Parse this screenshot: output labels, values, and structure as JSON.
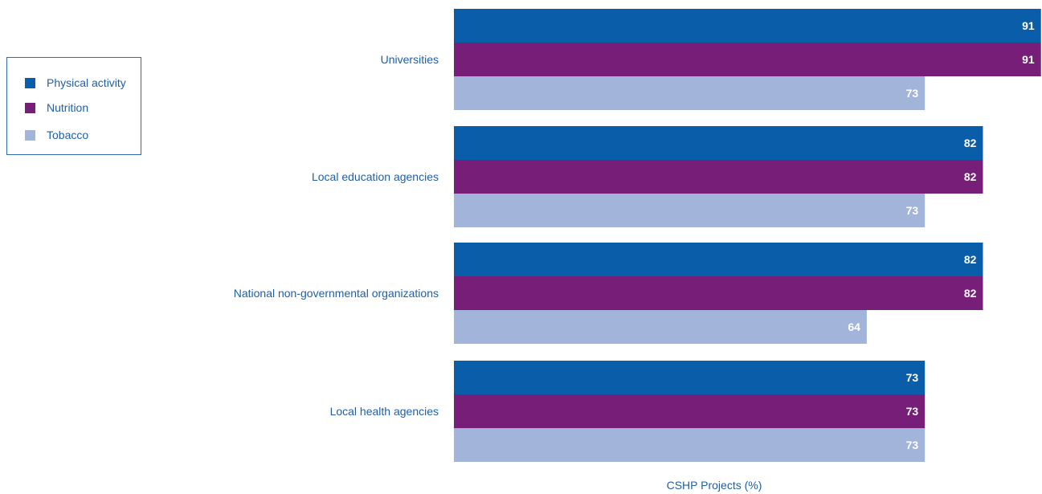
{
  "chart_data": {
    "type": "bar",
    "orientation": "horizontal",
    "categories": [
      "Universities",
      "Local education agencies",
      "National non-governmental organizations",
      "Local health agencies"
    ],
    "series": [
      {
        "name": "Physical activity",
        "color": "#0a5ea9",
        "values": [
          91,
          82,
          82,
          73
        ]
      },
      {
        "name": "Nutrition",
        "color": "#771e78",
        "values": [
          91,
          82,
          82,
          73
        ]
      },
      {
        "name": "Tobacco",
        "color": "#a3b4da",
        "values": [
          73,
          73,
          64,
          73
        ]
      }
    ],
    "xlabel": "CSHP Projects (%)",
    "xlim": [
      0,
      100
    ],
    "legend": "top-left",
    "grid": false,
    "data_labels": true
  }
}
